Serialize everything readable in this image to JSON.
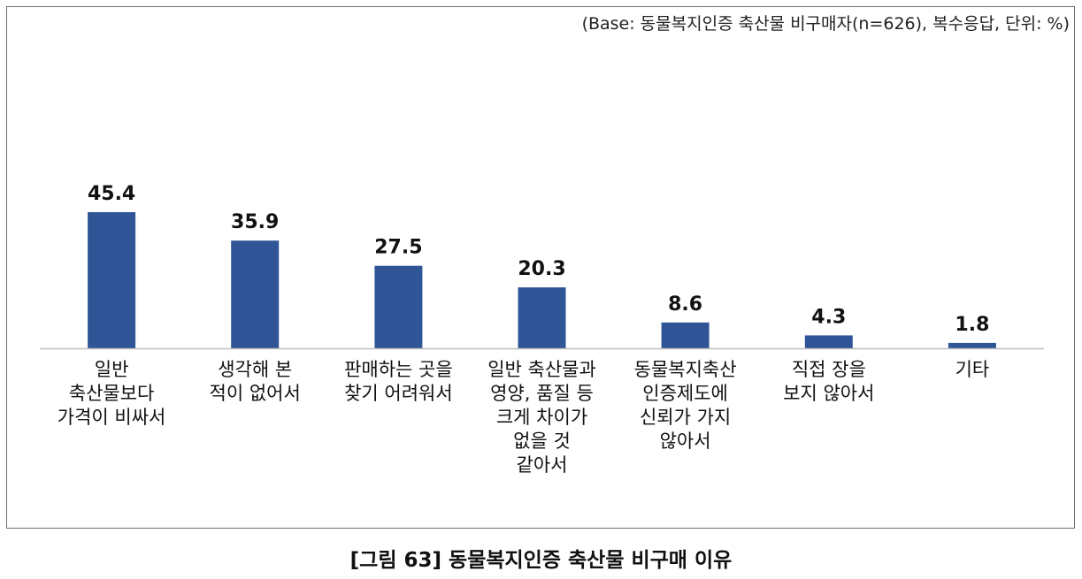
{
  "base_note": "(Base: 동물복지인증 축산물 비구매자(n=626), 복수응답, 단위: %)",
  "caption": "[그림 63] 동물복지인증 축산물 비구매 이유",
  "colors": {
    "bar": "#2f5597",
    "axis": "#bfbfbf",
    "frame": "#6e6e6e"
  },
  "chart_data": {
    "type": "bar",
    "title": "",
    "xlabel": "",
    "ylabel": "",
    "unit": "%",
    "ylim": [
      0,
      50
    ],
    "grid": false,
    "legend": "none",
    "categories": [
      [
        "일반",
        "축산물보다",
        "가격이 비싸서"
      ],
      [
        "생각해 본",
        "적이 없어서"
      ],
      [
        "판매하는 곳을",
        "찾기 어려워서"
      ],
      [
        "일반 축산물과",
        "영양, 품질 등",
        "크게 차이가",
        "없을 것",
        "같아서"
      ],
      [
        "동물복지축산",
        "인증제도에",
        "신뢰가 가지",
        "않아서"
      ],
      [
        "직접 장을",
        "보지 않아서"
      ],
      [
        "기타"
      ]
    ],
    "values": [
      45.4,
      35.9,
      27.5,
      20.3,
      8.6,
      4.3,
      1.8
    ],
    "value_labels": [
      "45.4",
      "35.9",
      "27.5",
      "20.3",
      "8.6",
      "4.3",
      "1.8"
    ]
  }
}
